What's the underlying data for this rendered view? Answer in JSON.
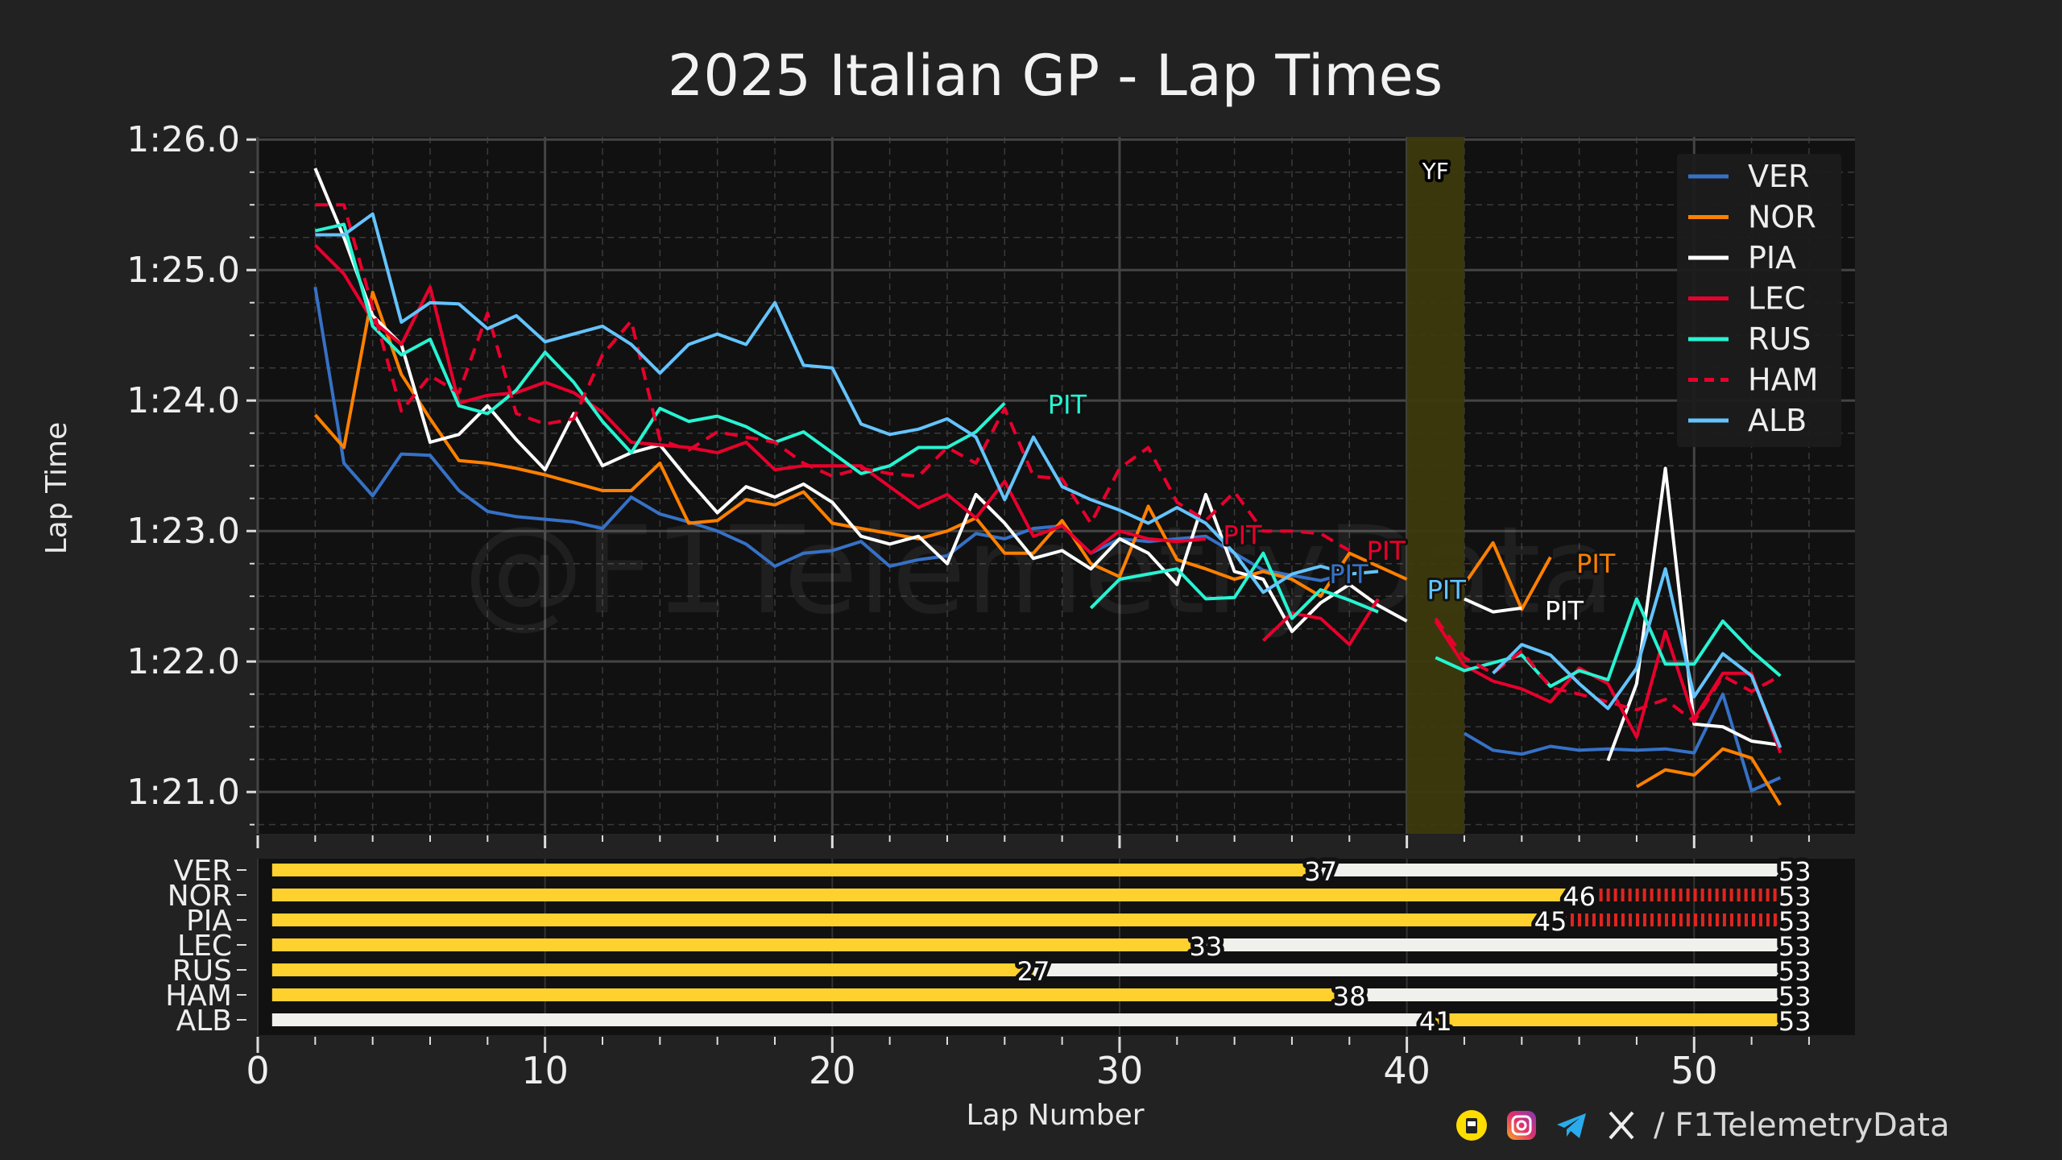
{
  "chart_data": [
    {
      "type": "line",
      "title": "2025 Italian GP - Lap Times",
      "xlabel": "Lap Number",
      "ylabel": "Lap Time",
      "xlim": [
        0,
        55.6
      ],
      "ylim": [
        80.68,
        86.02
      ],
      "grid": true,
      "legend_placement": "top-right",
      "y_ticks": [
        {
          "value": 81,
          "label": "1:21.0"
        },
        {
          "value": 82,
          "label": "1:22.0"
        },
        {
          "value": 83,
          "label": "1:23.0"
        },
        {
          "value": 84,
          "label": "1:24.0"
        },
        {
          "value": 85,
          "label": "1:25.0"
        },
        {
          "value": 86,
          "label": "1:26.0"
        }
      ],
      "x_ticks": [
        0,
        10,
        20,
        30,
        40,
        50
      ],
      "yellow_flag": {
        "label": "YF",
        "from_lap": 40,
        "to_lap": 42,
        "color": "#3d3a0e"
      },
      "x": [
        2,
        3,
        4,
        5,
        6,
        7,
        8,
        9,
        10,
        11,
        12,
        13,
        14,
        15,
        16,
        17,
        18,
        19,
        20,
        21,
        22,
        23,
        24,
        25,
        26,
        27,
        28,
        29,
        30,
        31,
        32,
        33,
        34,
        35,
        36,
        37,
        38,
        39,
        40,
        41,
        42,
        43,
        44,
        45,
        46,
        47,
        48,
        49,
        50,
        51,
        52,
        53
      ],
      "series": [
        {
          "name": "VER",
          "color": "#3671C6",
          "dashed": false,
          "values": [
            84.87,
            83.52,
            83.27,
            83.59,
            83.58,
            83.31,
            83.15,
            83.11,
            83.09,
            83.07,
            83.02,
            83.26,
            83.13,
            83.07,
            83.0,
            82.9,
            82.73,
            82.83,
            82.85,
            82.92,
            82.73,
            82.78,
            82.81,
            82.98,
            82.94,
            83.02,
            83.04,
            82.83,
            82.94,
            82.92,
            82.94,
            82.96,
            82.83,
            82.7,
            82.66,
            82.62,
            82.68,
            null,
            null,
            null,
            81.45,
            81.32,
            81.29,
            81.35,
            81.32,
            81.33,
            81.32,
            81.33,
            81.3,
            81.75,
            81.01,
            81.11
          ]
        },
        {
          "name": "NOR",
          "color": "#FF8000",
          "dashed": false,
          "values": [
            83.89,
            83.64,
            84.83,
            84.2,
            83.86,
            83.54,
            83.52,
            83.48,
            83.43,
            83.37,
            83.31,
            83.31,
            83.52,
            83.06,
            83.08,
            83.24,
            83.2,
            83.3,
            83.06,
            83.02,
            82.98,
            82.94,
            83.0,
            83.1,
            82.83,
            82.83,
            83.08,
            82.75,
            82.65,
            83.19,
            82.78,
            82.71,
            82.63,
            82.69,
            82.63,
            82.5,
            82.83,
            82.73,
            82.63,
            null,
            82.59,
            82.91,
            82.4,
            82.8,
            null,
            null,
            81.04,
            81.17,
            81.13,
            81.33,
            81.26,
            80.9
          ]
        },
        {
          "name": "PIA",
          "color": "#FFFFFF",
          "dashed": false,
          "values": [
            85.78,
            85.25,
            84.65,
            84.43,
            83.68,
            83.74,
            83.96,
            83.7,
            83.47,
            83.9,
            83.5,
            83.6,
            83.66,
            83.39,
            83.14,
            83.34,
            83.26,
            83.36,
            83.22,
            82.96,
            82.9,
            82.96,
            82.75,
            83.28,
            83.06,
            82.79,
            82.85,
            82.71,
            82.94,
            82.83,
            82.59,
            83.28,
            82.69,
            82.63,
            82.23,
            82.45,
            82.59,
            82.43,
            82.31,
            null,
            82.48,
            82.38,
            82.41,
            null,
            null,
            81.24,
            81.83,
            83.48,
            81.52,
            81.5,
            81.39,
            81.36
          ]
        },
        {
          "name": "LEC",
          "color": "#E8002D",
          "dashed": false,
          "values": [
            85.19,
            84.97,
            84.61,
            84.43,
            84.87,
            83.98,
            84.04,
            84.06,
            84.14,
            84.06,
            83.91,
            83.68,
            83.66,
            83.64,
            83.6,
            83.68,
            83.47,
            83.5,
            83.5,
            83.5,
            83.34,
            83.18,
            83.28,
            83.1,
            83.38,
            82.96,
            83.04,
            82.83,
            83.0,
            82.94,
            82.92,
            82.94,
            null,
            82.16,
            82.37,
            82.33,
            82.13,
            82.48,
            null,
            82.31,
            81.97,
            81.85,
            81.79,
            81.69,
            81.95,
            81.83,
            81.42,
            82.23,
            81.56,
            81.91,
            81.91,
            81.3
          ]
        },
        {
          "name": "RUS",
          "color": "#27F4D2",
          "dashed": false,
          "values": [
            85.3,
            85.35,
            84.57,
            84.35,
            84.47,
            83.96,
            83.9,
            84.08,
            84.37,
            84.14,
            83.84,
            83.6,
            83.94,
            83.84,
            83.88,
            83.8,
            83.68,
            83.76,
            83.6,
            83.44,
            83.5,
            83.64,
            83.64,
            83.76,
            83.98,
            null,
            null,
            82.41,
            82.63,
            82.67,
            82.71,
            82.48,
            82.49,
            82.83,
            82.33,
            82.55,
            82.47,
            82.38,
            null,
            82.03,
            81.93,
            81.99,
            82.05,
            81.81,
            81.93,
            81.86,
            82.48,
            81.98,
            81.98,
            82.31,
            82.08,
            81.89
          ]
        },
        {
          "name": "HAM",
          "color": "#E8002D",
          "dashed": true,
          "values": [
            85.5,
            85.5,
            84.71,
            83.92,
            84.19,
            84.06,
            84.67,
            83.9,
            83.82,
            83.86,
            84.35,
            84.61,
            83.7,
            83.62,
            83.76,
            83.72,
            83.68,
            83.52,
            83.42,
            83.48,
            83.44,
            83.42,
            83.64,
            83.52,
            83.94,
            83.42,
            83.4,
            83.06,
            83.48,
            83.64,
            83.22,
            83.08,
            83.3,
            83.0,
            83.0,
            82.98,
            82.85,
            null,
            null,
            82.33,
            82.03,
            81.91,
            82.08,
            81.8,
            81.75,
            81.69,
            81.63,
            81.71,
            81.54,
            81.89,
            81.77,
            81.89
          ]
        },
        {
          "name": "ALB",
          "color": "#64C4FF",
          "dashed": false,
          "values": [
            85.27,
            85.27,
            85.43,
            84.6,
            84.75,
            84.74,
            84.55,
            84.65,
            84.45,
            84.51,
            84.57,
            84.43,
            84.21,
            84.43,
            84.51,
            84.43,
            84.75,
            84.27,
            84.25,
            83.82,
            83.74,
            83.78,
            83.86,
            83.72,
            83.24,
            83.72,
            83.34,
            83.24,
            83.16,
            83.06,
            83.18,
            83.06,
            82.83,
            82.53,
            82.67,
            82.73,
            82.67,
            82.69,
            null,
            null,
            null,
            81.91,
            82.13,
            82.05,
            81.83,
            81.64,
            81.95,
            82.71,
            81.73,
            82.06,
            81.89,
            81.34
          ]
        }
      ],
      "annotations": [
        {
          "text": "PIT",
          "lap": 27.5,
          "time": 83.9,
          "color": "#27F4D2"
        },
        {
          "text": "PIT",
          "lap": 33.6,
          "time": 82.9,
          "color": "#E8002D"
        },
        {
          "text": "PIT",
          "lap": 37.3,
          "time": 82.6,
          "color": "#3671C6"
        },
        {
          "text": "PIT",
          "lap": 38.6,
          "time": 82.78,
          "color": "#E8002D"
        },
        {
          "text": "PIT",
          "lap": 40.7,
          "time": 82.48,
          "color": "#64C4FF"
        },
        {
          "text": "PIT",
          "lap": 45.9,
          "time": 82.68,
          "color": "#FF8000"
        },
        {
          "text": "PIT",
          "lap": 44.8,
          "time": 82.32,
          "color": "#FFFFFF"
        }
      ]
    },
    {
      "type": "bar",
      "subtype": "tyre-stints",
      "xlabel": "Lap Number",
      "compound_colors": {
        "yellow": "#FFD12E",
        "white": "#F0F0EC",
        "red": "#E0261F"
      },
      "drivers": [
        {
          "name": "VER",
          "stints": [
            {
              "from": 0.5,
              "to": 37,
              "color": "yellow"
            },
            {
              "from": 37,
              "to": 53,
              "color": "white"
            }
          ]
        },
        {
          "name": "NOR",
          "stints": [
            {
              "from": 0.5,
              "to": 46,
              "color": "yellow"
            },
            {
              "from": 46,
              "to": 53,
              "color": "red"
            }
          ]
        },
        {
          "name": "PIA",
          "stints": [
            {
              "from": 0.5,
              "to": 45,
              "color": "yellow"
            },
            {
              "from": 45,
              "to": 53,
              "color": "red"
            }
          ]
        },
        {
          "name": "LEC",
          "stints": [
            {
              "from": 0.5,
              "to": 33,
              "color": "yellow"
            },
            {
              "from": 33,
              "to": 53,
              "color": "white"
            }
          ]
        },
        {
          "name": "RUS",
          "stints": [
            {
              "from": 0.5,
              "to": 27,
              "color": "yellow"
            },
            {
              "from": 27,
              "to": 53,
              "color": "white"
            }
          ]
        },
        {
          "name": "HAM",
          "stints": [
            {
              "from": 0.5,
              "to": 38,
              "color": "yellow"
            },
            {
              "from": 38,
              "to": 53,
              "color": "white"
            }
          ]
        },
        {
          "name": "ALB",
          "stints": [
            {
              "from": 0.5,
              "to": 41,
              "color": "white"
            },
            {
              "from": 41,
              "to": 53,
              "color": "yellow"
            }
          ]
        }
      ]
    }
  ],
  "watermark": "@F1TelemetryData",
  "footer": {
    "icons": [
      "buymeacoffee-icon",
      "instagram-icon",
      "telegram-icon",
      "x-icon"
    ],
    "handle": "/ F1TelemetryData"
  }
}
